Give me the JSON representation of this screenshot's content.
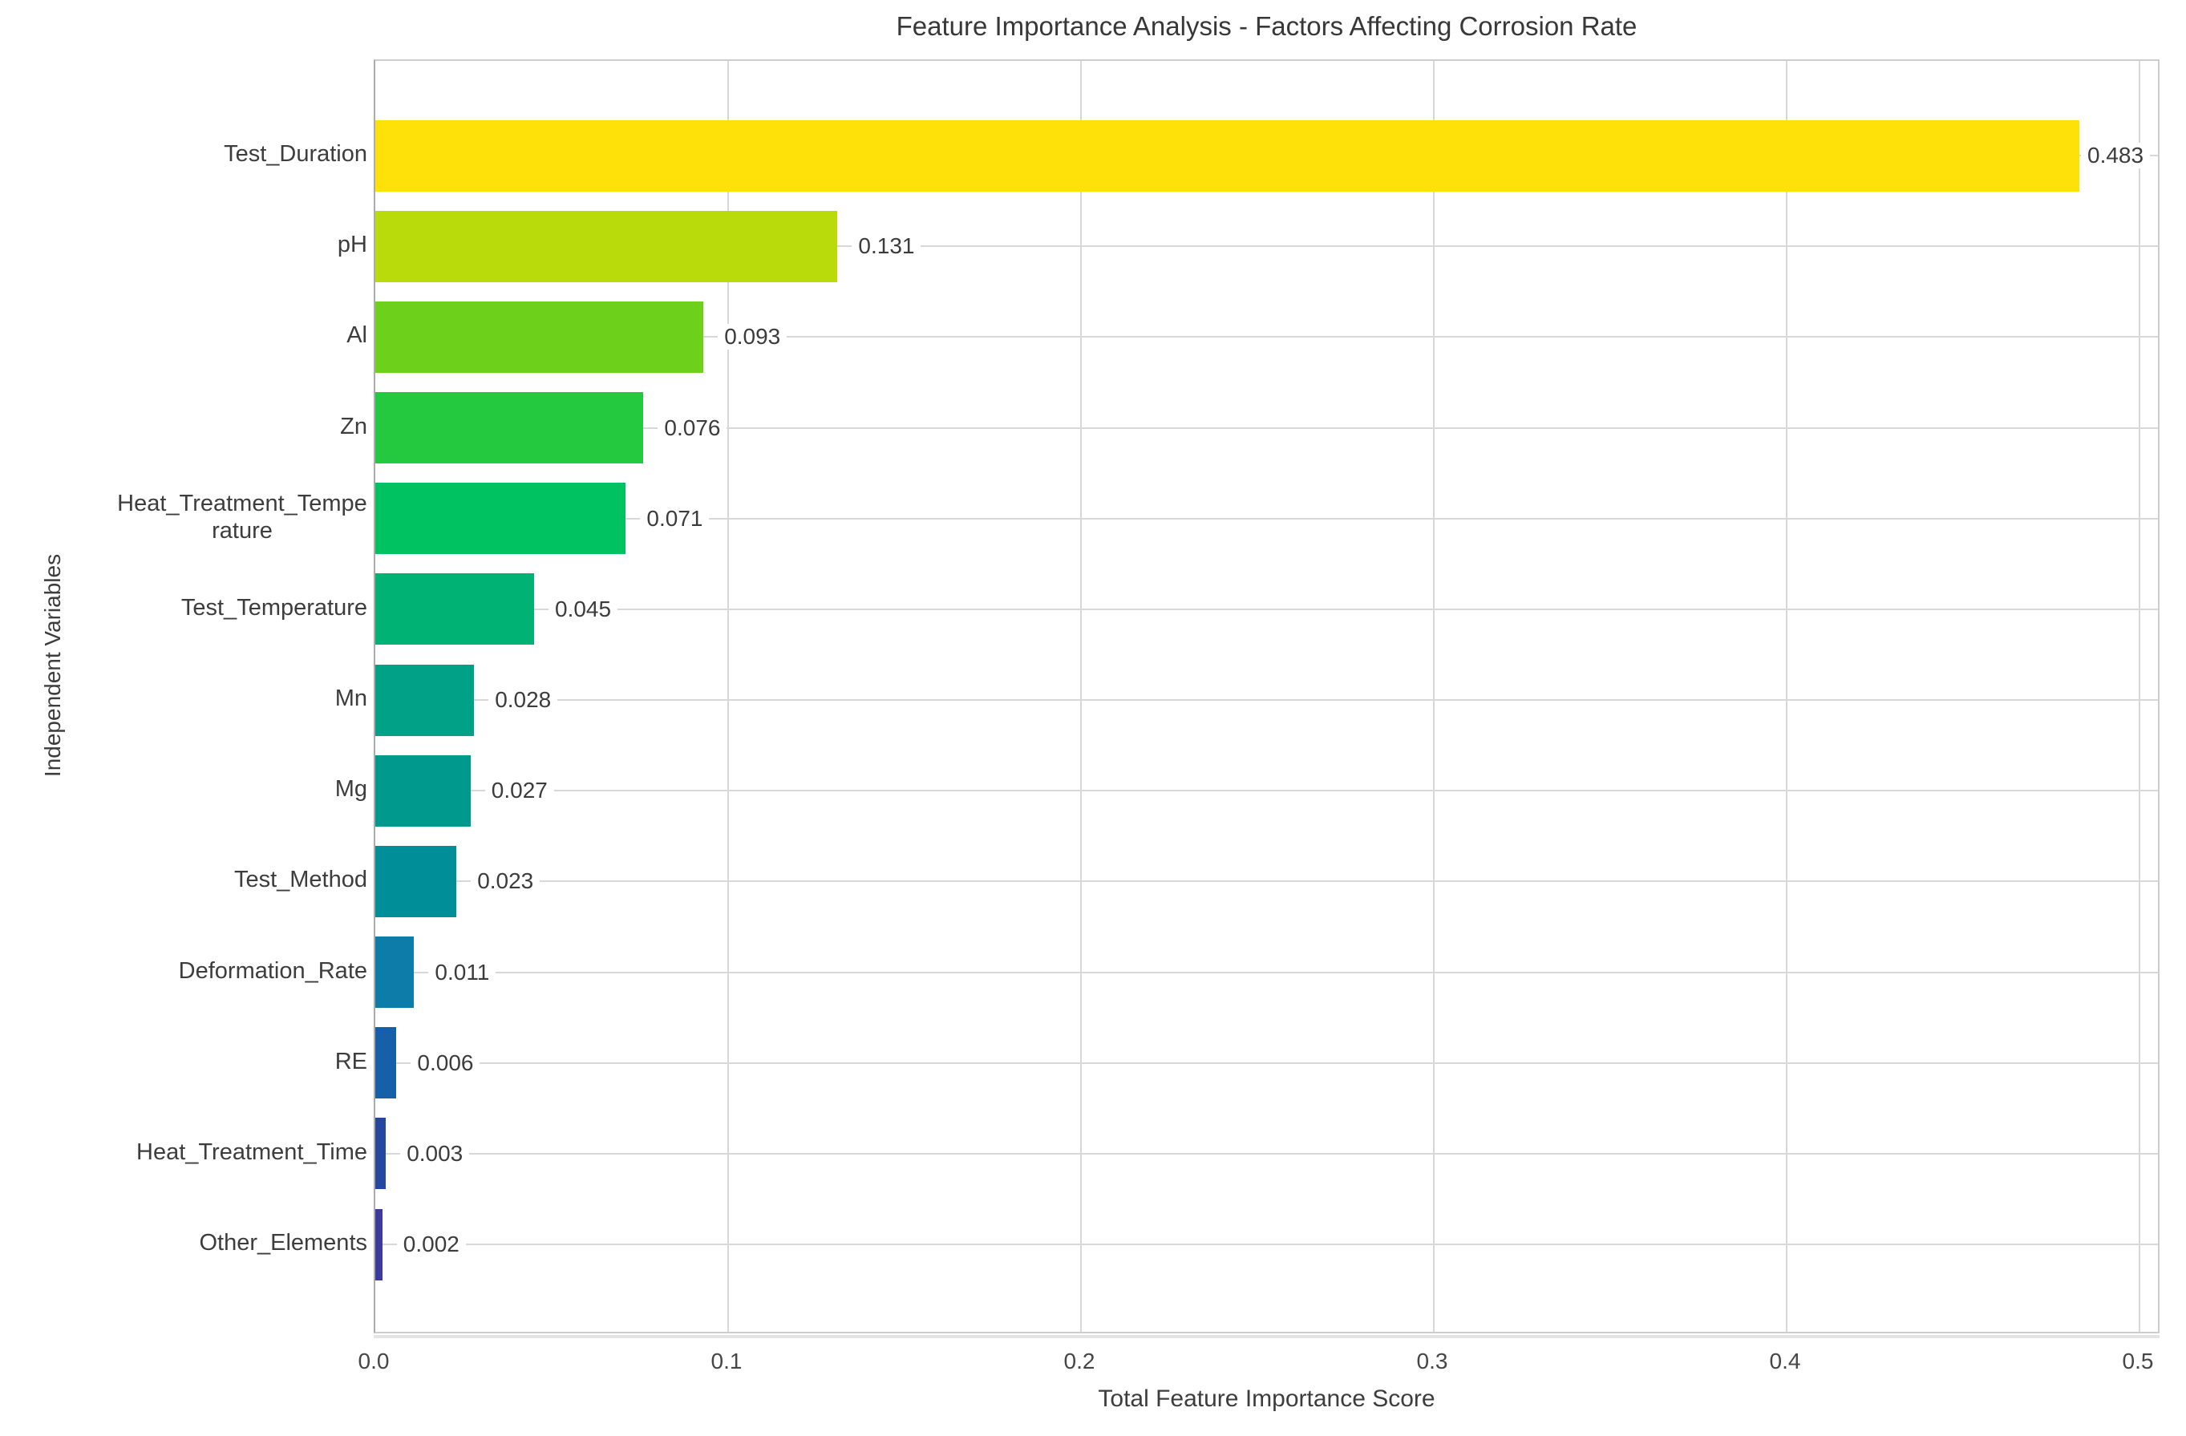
{
  "chart_data": {
    "type": "bar",
    "orientation": "horizontal",
    "title": "Feature Importance Analysis - Factors Affecting Corrosion Rate",
    "xlabel": "Total Feature Importance Score",
    "ylabel": "Independent Variables",
    "xlim": [
      0.0,
      0.5
    ],
    "x_ticks": [
      0.0,
      0.1,
      0.2,
      0.3,
      0.4,
      0.5
    ],
    "x_tick_labels": [
      "0.0",
      "0.1",
      "0.2",
      "0.3",
      "0.4",
      "0.5"
    ],
    "grid": true,
    "legend": "none",
    "categories": [
      "Test_Duration",
      "pH",
      "Al",
      "Zn",
      "Heat_Treatment_Temperature",
      "Test_Temperature",
      "Mn",
      "Mg",
      "Test_Method",
      "Deformation_Rate",
      "RE",
      "Heat_Treatment_Time",
      "Other_Elements"
    ],
    "values": [
      0.483,
      0.131,
      0.093,
      0.076,
      0.071,
      0.045,
      0.028,
      0.027,
      0.023,
      0.011,
      0.006,
      0.003,
      0.002
    ],
    "value_labels": [
      "0.483",
      "0.131",
      "0.093",
      "0.076",
      "0.071",
      "0.045",
      "0.028",
      "0.027",
      "0.023",
      "0.011",
      "0.006",
      "0.003",
      "0.002"
    ],
    "bar_colors": [
      "#ffe10a",
      "#badb0b",
      "#6dd01a",
      "#25c93f",
      "#00c261",
      "#00b274",
      "#00a186",
      "#00998e",
      "#008e99",
      "#0d7ca8",
      "#1560a9",
      "#25479d",
      "#3c3a9c"
    ],
    "colors": {
      "grid": "#d8d8d8",
      "axis_spine": "#ababab",
      "plot_border": "#cdcdcd",
      "text": "#3d3d3d"
    }
  }
}
